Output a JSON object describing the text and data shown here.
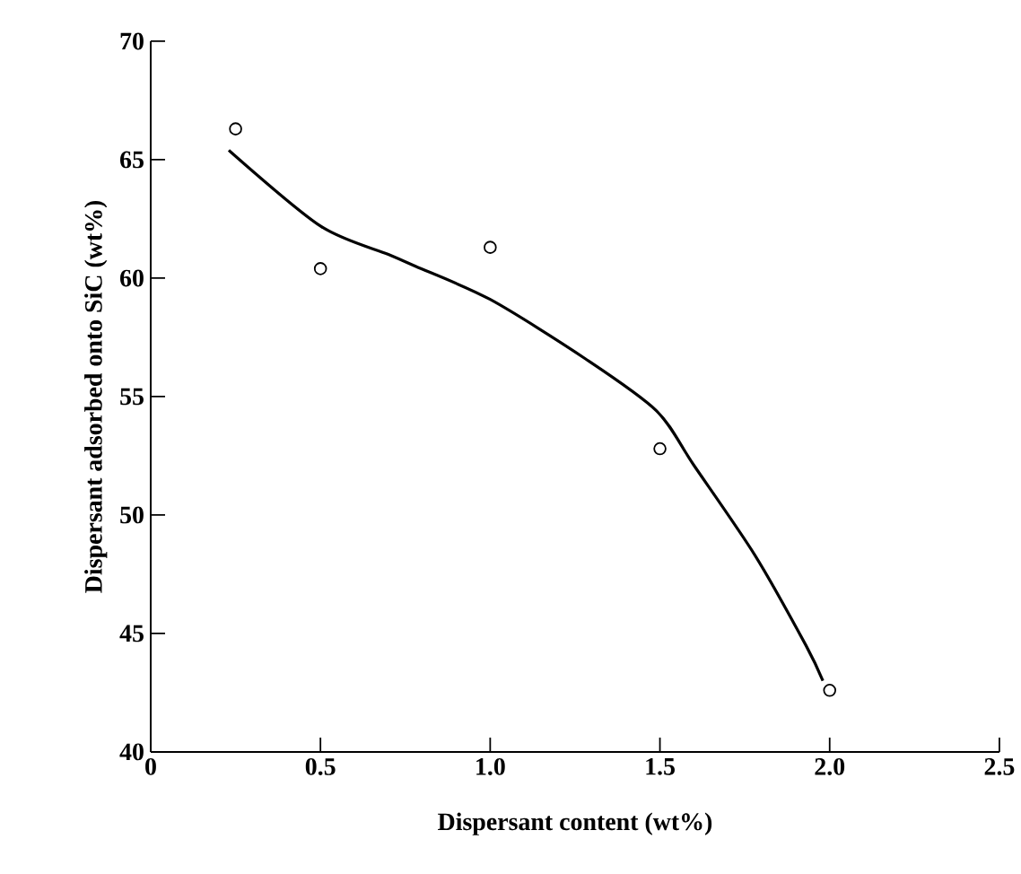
{
  "chart_data": {
    "type": "scatter",
    "xlabel": "Dispersant content (wt%)",
    "ylabel": "Dispersant adsorbed onto SiC (wt%)",
    "xlim": [
      0,
      2.5
    ],
    "ylim": [
      40,
      70
    ],
    "xticks": [
      0,
      0.5,
      {
        "value": 1,
        "label": "1.0"
      },
      1.5,
      {
        "value": 2,
        "label": "2.0"
      },
      2.5
    ],
    "yticks": [
      40,
      45,
      50,
      55,
      60,
      65,
      70
    ],
    "series": [
      {
        "marker": "circle",
        "color": "#000000",
        "x": [
          0.25,
          0.5,
          1.0,
          1.5,
          2.0
        ],
        "values": [
          66.3,
          60.4,
          61.3,
          52.8,
          42.6
        ]
      },
      {
        "type": "line",
        "marker": "none",
        "line_style": "solid",
        "color": "#000000",
        "x": [
          0.23,
          0.5,
          0.7,
          0.78,
          1.0,
          1.28,
          1.49,
          1.6,
          1.78,
          1.93,
          1.98
        ],
        "values": [
          65.4,
          62.2,
          61.0,
          60.5,
          59.1,
          56.6,
          54.4,
          52.1,
          48.3,
          44.5,
          43.0
        ]
      }
    ]
  }
}
